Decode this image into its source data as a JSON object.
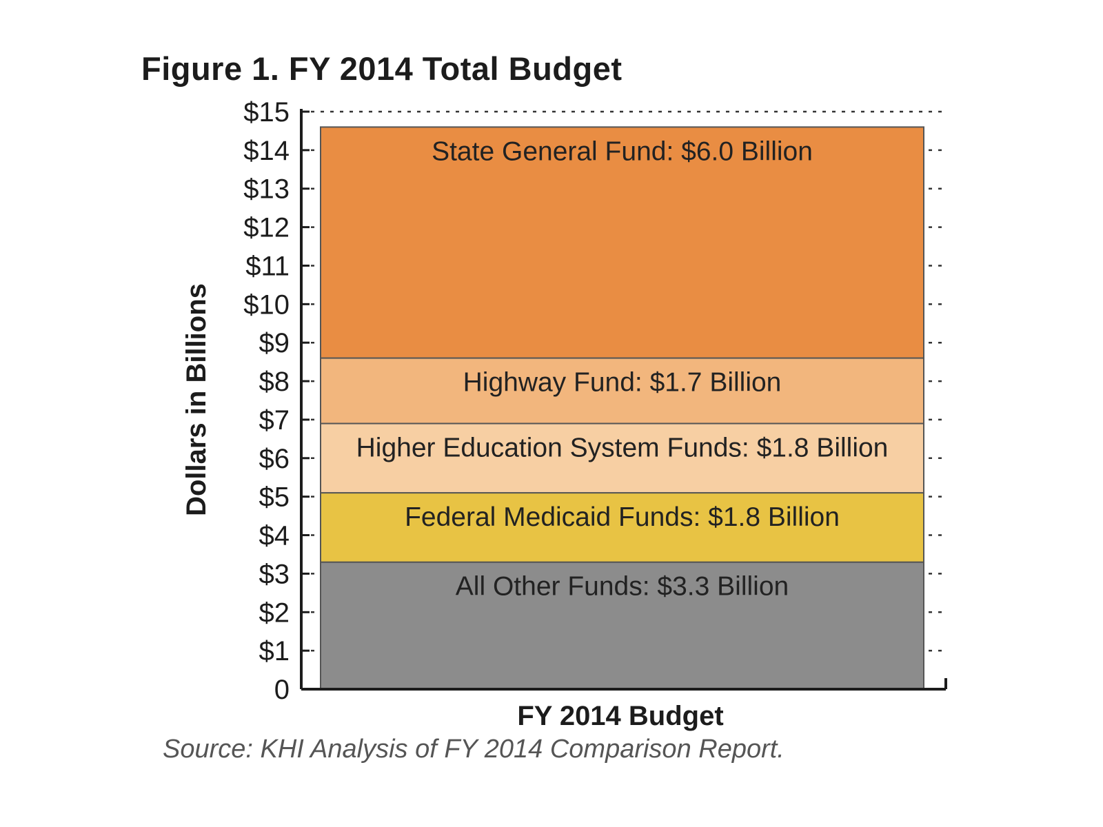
{
  "title": "Figure 1. FY 2014 Total Budget",
  "source": "Source: KHI Analysis of FY 2014 Comparison Report.",
  "chart_data": {
    "type": "bar",
    "stacked": true,
    "categories": [
      "FY 2014 Budget"
    ],
    "xlabel": "FY 2014 Budget",
    "ylabel": "Dollars in Billions",
    "ylim": [
      0,
      15
    ],
    "yticks": [
      "0",
      "$1",
      "$2",
      "$3",
      "$4",
      "$5",
      "$6",
      "$7",
      "$8",
      "$9",
      "$10",
      "$11",
      "$12",
      "$13",
      "$14",
      "$15"
    ],
    "grid": true,
    "series": [
      {
        "name": "All Other Funds",
        "values": [
          3.3
        ],
        "label": "All Other Funds: $3.3 Billion",
        "color": "#8c8c8c"
      },
      {
        "name": "Federal Medicaid Funds",
        "values": [
          1.8
        ],
        "label": "Federal Medicaid Funds: $1.8 Billion",
        "color": "#e8c344"
      },
      {
        "name": "Higher Education System Funds",
        "values": [
          1.8
        ],
        "label": "Higher Education System Funds: $1.8 Billion",
        "color": "#f7cfa3"
      },
      {
        "name": "Highway Fund",
        "values": [
          1.7
        ],
        "label": "Highway Fund: $1.7 Billion",
        "color": "#f2b67d"
      },
      {
        "name": "State General Fund",
        "values": [
          6.0
        ],
        "label": "State General Fund: $6.0 Billion",
        "color": "#e98d43"
      }
    ]
  }
}
